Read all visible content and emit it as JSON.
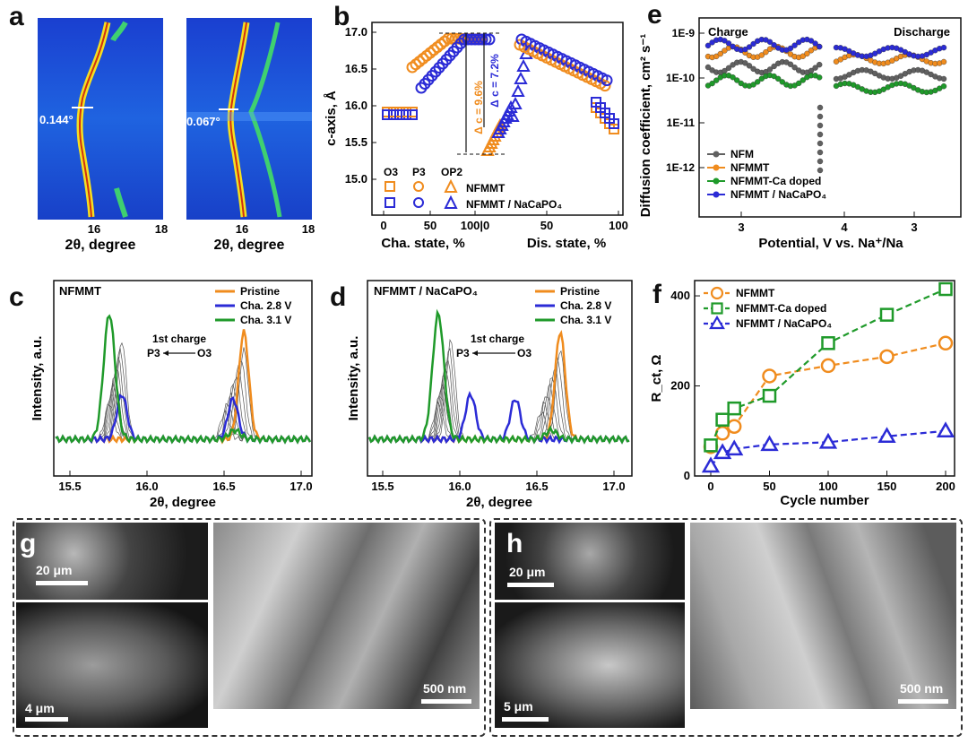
{
  "panels": {
    "a": {
      "letter": "a",
      "xlabel": "2θ, degree",
      "left": {
        "ticks": [
          "16",
          "18"
        ],
        "width": "0.144°"
      },
      "right": {
        "ticks": [
          "16",
          "18"
        ],
        "width": "0.067°"
      }
    },
    "b": {
      "letter": "b",
      "ylabel": "c-axis, Å",
      "xlabel_left": "Cha. state, %",
      "xlabel_right": "Dis. state, %",
      "yticks": [
        "15.0",
        "15.5",
        "16.0",
        "16.5",
        "17.0"
      ],
      "xticks": [
        "0",
        "50",
        "100|0",
        "50",
        "100"
      ],
      "ann1": "Δ c = 9.6%",
      "ann2": "Δ c = 7.2%",
      "legend": {
        "phases": [
          "O3",
          "P3",
          "OP2"
        ],
        "rows": [
          "NFMMT",
          "NFMMT / NaCaPO₄"
        ]
      }
    },
    "c": {
      "letter": "c",
      "title": "NFMMT",
      "xlabel": "2θ, degree",
      "ylabel": "Intensity, a.u.",
      "xticks": [
        "15.5",
        "16.0",
        "16.5",
        "17.0"
      ],
      "legend": [
        "Pristine",
        "Cha. 2.8 V",
        "Cha. 3.1 V"
      ],
      "ann": "1st charge",
      "arrow_from": "O3",
      "arrow_to": "P3"
    },
    "d": {
      "letter": "d",
      "title": "NFMMT / NaCaPO₄",
      "xlabel": "2θ, degree",
      "ylabel": "Intensity, a.u.",
      "xticks": [
        "15.5",
        "16.0",
        "16.5",
        "17.0"
      ],
      "legend": [
        "Pristine",
        "Cha. 2.8 V",
        "Cha. 3.1 V"
      ],
      "ann": "1st charge",
      "arrow_from": "O3",
      "arrow_to": "P3"
    },
    "e": {
      "letter": "e",
      "ylabel": "Diffusion coefficient, cm² s⁻¹",
      "xlabel": "Potential, V vs. Na⁺/Na",
      "charge": "Charge",
      "discharge": "Discharge",
      "yticks": [
        "1E-9",
        "1E-10",
        "1E-11",
        "1E-12"
      ],
      "xticks": [
        "3",
        "4",
        "3"
      ],
      "legend": [
        "NFM",
        "NFMMT",
        "NFMMT-Ca doped",
        "NFMMT / NaCaPO₄"
      ]
    },
    "f": {
      "letter": "f",
      "ylabel": "R_ct, Ω",
      "xlabel": "Cycle number",
      "yticks": [
        "0",
        "200",
        "400"
      ],
      "xticks": [
        "0",
        "50",
        "100",
        "150",
        "200"
      ],
      "legend": [
        "NFMMT",
        "NFMMT-Ca doped",
        "NFMMT / NaCaPO₄"
      ]
    },
    "g": {
      "letter": "g",
      "scale1": "20 μm",
      "scale2": "4 μm",
      "scale3": "500 nm"
    },
    "h": {
      "letter": "h",
      "scale1": "20 μm",
      "scale2": "5 μm",
      "scale3": "500 nm"
    }
  },
  "colors": {
    "orange": "#f08c1e",
    "blue": "#2b2bd6",
    "green": "#1f9a2a",
    "gray": "#606060"
  },
  "chart_data": [
    {
      "type": "scatter",
      "title": "",
      "xlabel": "Cycle number",
      "ylabel": "R_ct, Ω",
      "xlim": [
        0,
        200
      ],
      "ylim": [
        0,
        420
      ],
      "series": [
        {
          "name": "NFMMT",
          "x": [
            0,
            10,
            20,
            50,
            100,
            150,
            200
          ],
          "y": [
            65,
            95,
            110,
            222,
            245,
            265,
            295
          ]
        },
        {
          "name": "NFMMT-Ca doped",
          "x": [
            0,
            10,
            20,
            50,
            100,
            150,
            200
          ],
          "y": [
            68,
            125,
            150,
            178,
            295,
            358,
            415
          ]
        },
        {
          "name": "NFMMT / NaCaPO₄",
          "x": [
            0,
            10,
            20,
            50,
            100,
            150,
            200
          ],
          "y": [
            22,
            52,
            60,
            70,
            75,
            88,
            100
          ]
        }
      ]
    }
  ]
}
